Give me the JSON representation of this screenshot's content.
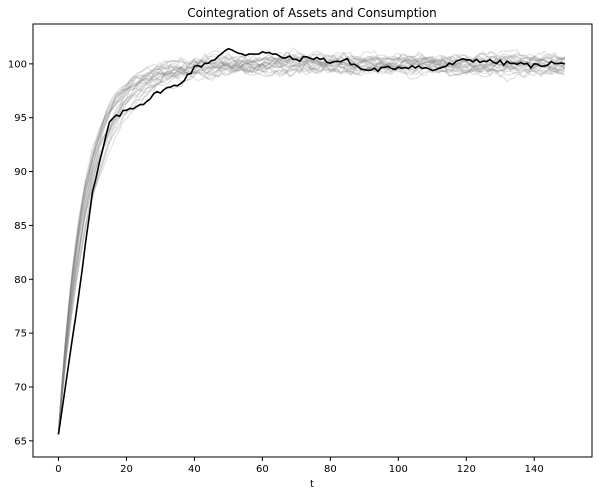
{
  "chart_data": {
    "type": "line",
    "title": "Cointegration of Assets and Consumption",
    "xlabel": "t",
    "ylabel": "",
    "xlim": [
      -7.5,
      157
    ],
    "ylim": [
      63.5,
      103.7
    ],
    "xticks": [
      0,
      20,
      40,
      60,
      80,
      100,
      120,
      140
    ],
    "yticks": [
      65,
      70,
      75,
      80,
      85,
      90,
      95,
      100
    ],
    "grid": false,
    "legend": "none",
    "n_periods": 150,
    "colors": {
      "highlight": "#000000",
      "background_paths": "#808080"
    },
    "highlight_series": {
      "x": [
        0,
        5,
        10,
        15,
        20,
        25,
        30,
        35,
        40,
        45,
        50,
        55,
        60,
        65,
        70,
        75,
        80,
        85,
        90,
        95,
        100,
        105,
        110,
        115,
        120,
        125,
        130,
        135,
        140,
        145,
        149
      ],
      "y": [
        65.6,
        76.5,
        88.0,
        94.6,
        95.7,
        96.4,
        97.5,
        98.0,
        99.6,
        100.3,
        101.3,
        100.9,
        101.1,
        100.7,
        100.4,
        100.6,
        100.2,
        100.3,
        99.4,
        99.5,
        99.7,
        99.8,
        99.4,
        99.9,
        100.4,
        100.3,
        100.1,
        100.0,
        99.8,
        100.1,
        99.9
      ]
    },
    "background_paths": {
      "count": 25,
      "start_value": 65.6,
      "settle_level": 100,
      "spread_after_settle": 1.2
    }
  }
}
